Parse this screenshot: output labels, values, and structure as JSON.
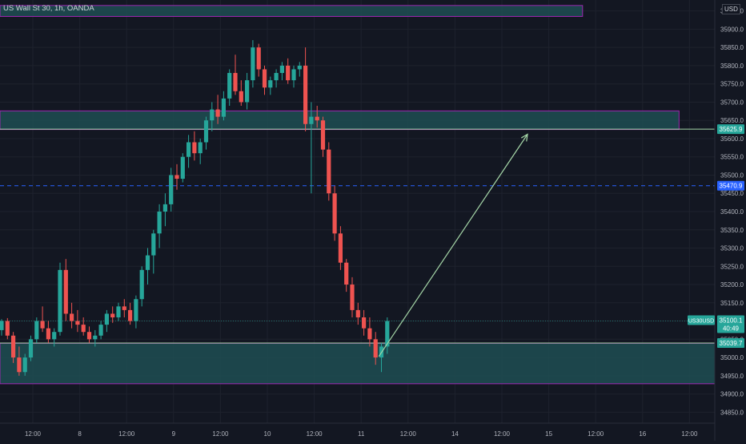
{
  "header": {
    "symbol": "US Wall St 30, 1h, OANDA",
    "currency": "USD"
  },
  "chart_data": {
    "type": "candlestick",
    "title": "US Wall St 30, 1h, OANDA",
    "ylim": [
      34820,
      35980
    ],
    "y_ticks": [
      "35950.0",
      "35900.0",
      "35850.0",
      "35800.0",
      "35750.0",
      "35700.0",
      "35650.0",
      "35600.0",
      "35550.0",
      "35500.0",
      "35450.0",
      "35400.0",
      "35350.0",
      "35300.0",
      "35250.0",
      "35200.0",
      "35150.0",
      "35100.0",
      "35050.0",
      "35000.0",
      "34950.0",
      "34900.0",
      "34850.0"
    ],
    "x_ticks": [
      "12:00",
      "8",
      "12:00",
      "9",
      "12:00",
      "10",
      "12:00",
      "11",
      "12:00",
      "14",
      "12:00",
      "15",
      "12:00",
      "16",
      "12:00"
    ],
    "colors": {
      "up": "#26a69a",
      "down": "#ef5350",
      "zone_fill": "#1e4d52",
      "zone_border": "#9c27b0",
      "dashed": "#2962ff",
      "arrow": "#a5d6a7"
    },
    "zones": [
      {
        "low": 35935,
        "high": 35965,
        "x_end_frac": 0.815
      },
      {
        "low": 35625,
        "high": 35676,
        "x_end_frac": 0.95
      },
      {
        "low": 34928,
        "high": 35039,
        "x_end_frac": 1.0
      }
    ],
    "lines": {
      "zone_top": 35625.9,
      "dashed": 35470.9,
      "current": 35100.1,
      "zone_low": 35039.7
    },
    "arrow": {
      "from": [
        0.53,
        35003
      ],
      "to": [
        0.738,
        35612
      ]
    },
    "price_labels": [
      {
        "text": "35625.9",
        "price": 35625.9,
        "color": "#26a69a"
      },
      {
        "text": "35470.9",
        "price": 35470.9,
        "color": "#2962ff"
      },
      {
        "text": "35039.7",
        "price": 35039.7,
        "color": "#26a69a"
      }
    ],
    "current_label": {
      "symbol": "US30USD",
      "price": "35100.1",
      "countdown": "40:49"
    },
    "candles": [
      [
        35075,
        35105,
        35060,
        35100
      ],
      [
        35100,
        35108,
        35050,
        35060
      ],
      [
        35060,
        35070,
        34985,
        35000
      ],
      [
        35000,
        35030,
        34950,
        34960
      ],
      [
        34960,
        35010,
        34950,
        35000
      ],
      [
        35000,
        35060,
        34990,
        35050
      ],
      [
        35050,
        35110,
        35040,
        35100
      ],
      [
        35100,
        35140,
        35070,
        35080
      ],
      [
        35080,
        35100,
        35040,
        35050
      ],
      [
        35050,
        35080,
        35030,
        35070
      ],
      [
        35070,
        35260,
        35060,
        35240
      ],
      [
        35240,
        35270,
        35100,
        35120
      ],
      [
        35120,
        35150,
        35080,
        35100
      ],
      [
        35100,
        35130,
        35070,
        35090
      ],
      [
        35090,
        35110,
        35060,
        35070
      ],
      [
        35070,
        35085,
        35040,
        35050
      ],
      [
        35050,
        35075,
        35030,
        35060
      ],
      [
        35060,
        35100,
        35050,
        35090
      ],
      [
        35090,
        35130,
        35070,
        35120
      ],
      [
        35120,
        35140,
        35095,
        35110
      ],
      [
        35110,
        35150,
        35100,
        35140
      ],
      [
        35140,
        35160,
        35110,
        35130
      ],
      [
        35130,
        35150,
        35090,
        35100
      ],
      [
        35100,
        35170,
        35080,
        35160
      ],
      [
        35160,
        35250,
        35140,
        35240
      ],
      [
        35240,
        35300,
        35200,
        35280
      ],
      [
        35280,
        35350,
        35230,
        35340
      ],
      [
        35340,
        35420,
        35300,
        35400
      ],
      [
        35400,
        35450,
        35360,
        35420
      ],
      [
        35420,
        35520,
        35400,
        35500
      ],
      [
        35500,
        35530,
        35460,
        35490
      ],
      [
        35490,
        35560,
        35480,
        35550
      ],
      [
        35550,
        35610,
        35520,
        35590
      ],
      [
        35590,
        35620,
        35540,
        35560
      ],
      [
        35560,
        35600,
        35530,
        35590
      ],
      [
        35590,
        35660,
        35570,
        35650
      ],
      [
        35650,
        35700,
        35620,
        35680
      ],
      [
        35680,
        35720,
        35640,
        35660
      ],
      [
        35660,
        35730,
        35650,
        35710
      ],
      [
        35710,
        35790,
        35690,
        35780
      ],
      [
        35780,
        35830,
        35720,
        35730
      ],
      [
        35730,
        35760,
        35690,
        35700
      ],
      [
        35700,
        35780,
        35680,
        35760
      ],
      [
        35760,
        35870,
        35740,
        35850
      ],
      [
        35850,
        35860,
        35770,
        35790
      ],
      [
        35790,
        35800,
        35720,
        35740
      ],
      [
        35740,
        35770,
        35720,
        35760
      ],
      [
        35760,
        35790,
        35740,
        35780
      ],
      [
        35780,
        35810,
        35760,
        35800
      ],
      [
        35800,
        35820,
        35750,
        35760
      ],
      [
        35760,
        35800,
        35740,
        35790
      ],
      [
        35790,
        35810,
        35770,
        35800
      ],
      [
        35800,
        35850,
        35620,
        35640
      ],
      [
        35640,
        35700,
        35450,
        35660
      ],
      [
        35660,
        35690,
        35630,
        35650
      ],
      [
        35650,
        35660,
        35550,
        35570
      ],
      [
        35570,
        35590,
        35430,
        35450
      ],
      [
        35450,
        35470,
        35320,
        35340
      ],
      [
        35340,
        35360,
        35240,
        35260
      ],
      [
        35260,
        35270,
        35180,
        35200
      ],
      [
        35200,
        35220,
        35110,
        35130
      ],
      [
        35130,
        35150,
        35090,
        35110
      ],
      [
        35110,
        35130,
        35060,
        35080
      ],
      [
        35080,
        35110,
        35030,
        35050
      ],
      [
        35050,
        35070,
        34980,
        35000
      ],
      [
        35000,
        35040,
        34960,
        35030
      ],
      [
        35030,
        35110,
        35010,
        35100
      ]
    ]
  }
}
